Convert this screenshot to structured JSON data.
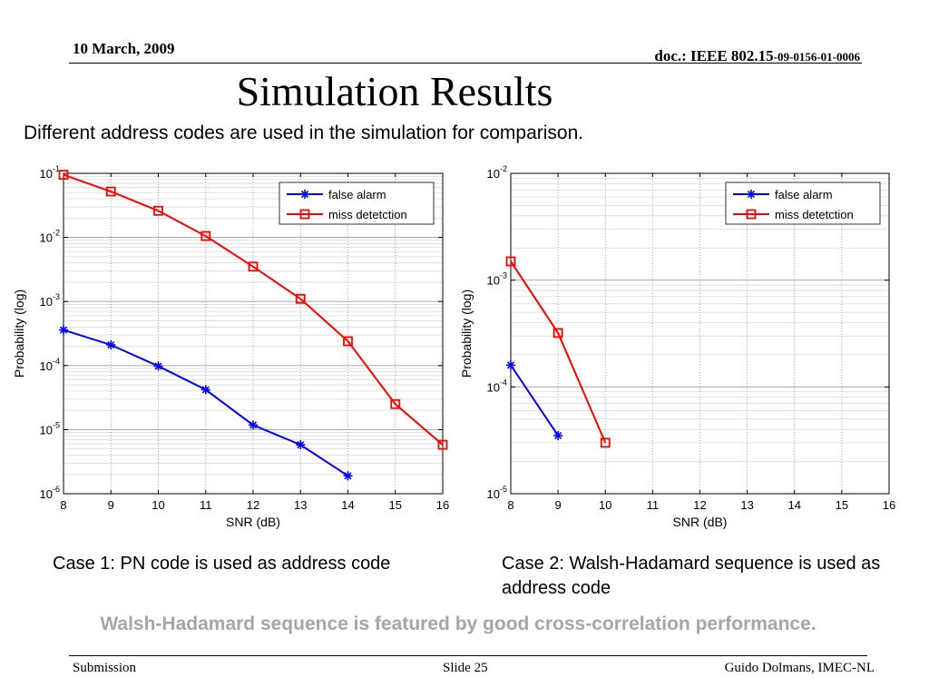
{
  "header": {
    "date": "10 March, 2009",
    "doc_prefix": "doc.: IEEE 802.15",
    "doc_suffix": "-09-0156-01-0006"
  },
  "title": "Simulation Results",
  "subtitle": "Different address codes are used in the simulation for comparison.",
  "captions": {
    "case1": "Case 1: PN code is used as address code",
    "case2": "Case 2: Walsh-Hadamard sequence is used as address code"
  },
  "highlight": "Walsh-Hadamard sequence is featured by good cross-correlation performance.",
  "footer": {
    "left": "Submission",
    "center": "Slide 25",
    "right": "Guido Dolmans, IMEC-NL"
  },
  "colors": {
    "false_alarm": "#0000ff",
    "miss_detection": "#ff0000",
    "highlight": "#a6a6a6"
  },
  "chart_data": [
    {
      "type": "line",
      "xlabel": "SNR (dB)",
      "ylabel": "Probability (log)",
      "xlim": [
        8,
        16
      ],
      "x_ticks": [
        8,
        9,
        10,
        11,
        12,
        13,
        14,
        15,
        16
      ],
      "ylim": [
        1e-06,
        0.1
      ],
      "y_scale": "log",
      "y_tick_exponents": [
        -6,
        -5,
        -4,
        -3,
        -2,
        -1
      ],
      "grid": true,
      "legend_position": "top-right",
      "series": [
        {
          "name": "false alarm",
          "color": "#0000ff",
          "marker": "star",
          "x": [
            8,
            9,
            10,
            11,
            12,
            13,
            14
          ],
          "y": [
            0.00036,
            0.00021,
            9.8e-05,
            4.2e-05,
            1.18e-05,
            5.8e-06,
            1.9e-06
          ]
        },
        {
          "name": "miss detetction",
          "color": "#ff0000",
          "marker": "square",
          "x": [
            8,
            9,
            10,
            11,
            12,
            13,
            14,
            15,
            16
          ],
          "y": [
            0.095,
            0.052,
            0.026,
            0.0105,
            0.0035,
            0.0011,
            0.00024,
            2.5e-05,
            5.8e-06
          ]
        }
      ]
    },
    {
      "type": "line",
      "xlabel": "SNR (dB)",
      "ylabel": "Probability (log)",
      "xlim": [
        8,
        16
      ],
      "x_ticks": [
        8,
        9,
        10,
        11,
        12,
        13,
        14,
        15,
        16
      ],
      "ylim": [
        1e-05,
        0.01
      ],
      "y_scale": "log",
      "y_tick_exponents": [
        -5,
        -4,
        -3,
        -2
      ],
      "grid": true,
      "legend_position": "top-right",
      "series": [
        {
          "name": "false alarm",
          "color": "#0000ff",
          "marker": "star",
          "x": [
            8,
            9
          ],
          "y": [
            0.00016,
            3.5e-05
          ]
        },
        {
          "name": "miss detetction",
          "color": "#ff0000",
          "marker": "square",
          "x": [
            8,
            9,
            10
          ],
          "y": [
            0.0015,
            0.00032,
            3e-05
          ]
        }
      ]
    }
  ]
}
